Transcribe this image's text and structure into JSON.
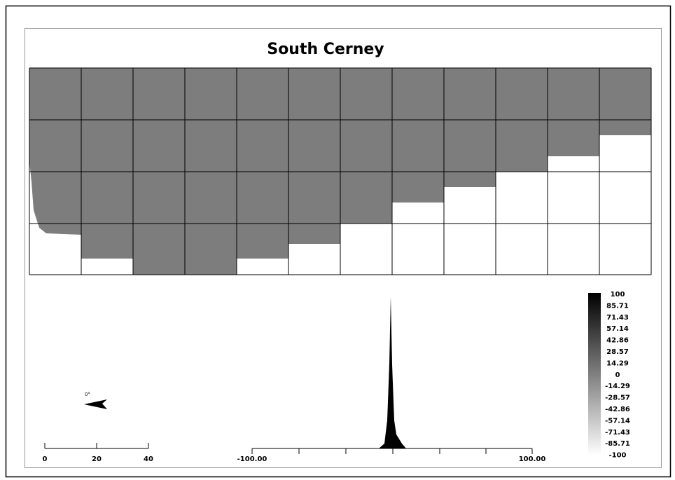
{
  "title": "South Cerney",
  "legend": {
    "labels": [
      "100",
      "85.71",
      "71.43",
      "57.14",
      "42.86",
      "28.57",
      "14.29",
      "0",
      "-14.29",
      "-28.57",
      "-42.86",
      "-57.14",
      "-71.43",
      "-85.71",
      "-100"
    ]
  },
  "histogram": {
    "labels": [
      "-100.00",
      "100.00"
    ]
  },
  "scale_bar": {
    "labels": [
      "0",
      "20",
      "40"
    ]
  },
  "north_arrow": {
    "label": "0°"
  }
}
